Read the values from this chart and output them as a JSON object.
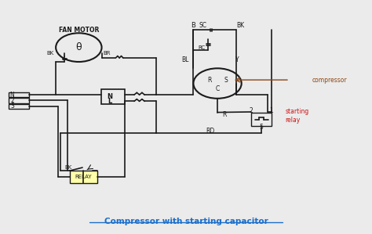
{
  "bg_color": "#ebebeb",
  "line_color": "#1a1a1a",
  "title": "Compressor with starting capacitor",
  "title_color": "#1a6fcc",
  "compressor_label": "compressor",
  "compressor_label_color": "#8B4513",
  "relay_label": "starting\nrelay",
  "relay_label_color": "#cc1111",
  "fan_motor_label": "FAN MOTOR"
}
